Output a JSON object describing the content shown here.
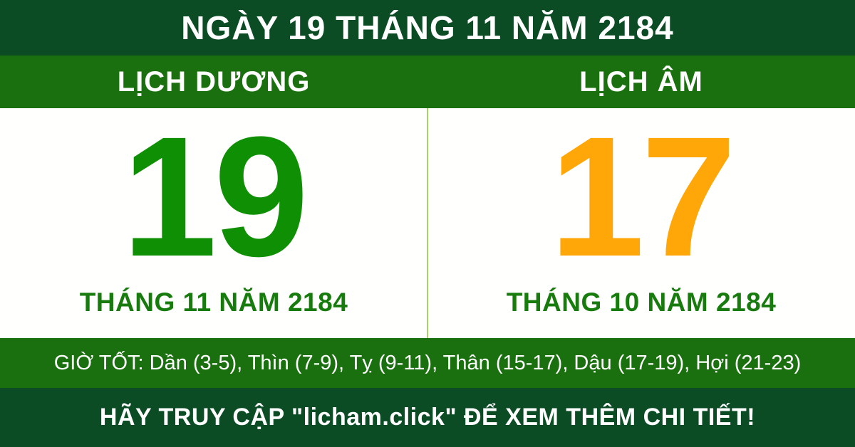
{
  "header": {
    "title": "NGÀY 19 THÁNG 11 NĂM 2184"
  },
  "columns": {
    "solar": {
      "label": "LỊCH DƯƠNG",
      "day": "19",
      "month_line": "THÁNG 11 NĂM 2184"
    },
    "lunar": {
      "label": "LỊCH ÂM",
      "day": "17",
      "month_line": "THÁNG 10 NĂM 2184"
    }
  },
  "good_hours": {
    "text": "GIỜ TỐT: Dần (3-5), Thìn (7-9), Tỵ (9-11), Thân (15-17), Dậu (17-19), Hợi (21-23)"
  },
  "footer": {
    "text": "HÃY TRUY CẬP \"licham.click\" ĐỂ XEM THÊM CHI TIẾT!"
  },
  "colors": {
    "dark_green": "#0b4c25",
    "band_green": "#1a700e",
    "solar_day_green": "#0f9004",
    "lunar_day_orange": "#ffa608",
    "month_green": "#177c0d",
    "divider_light_green": "#a5d365",
    "text_white": "#ffffff",
    "panel_white": "#fffffe"
  }
}
